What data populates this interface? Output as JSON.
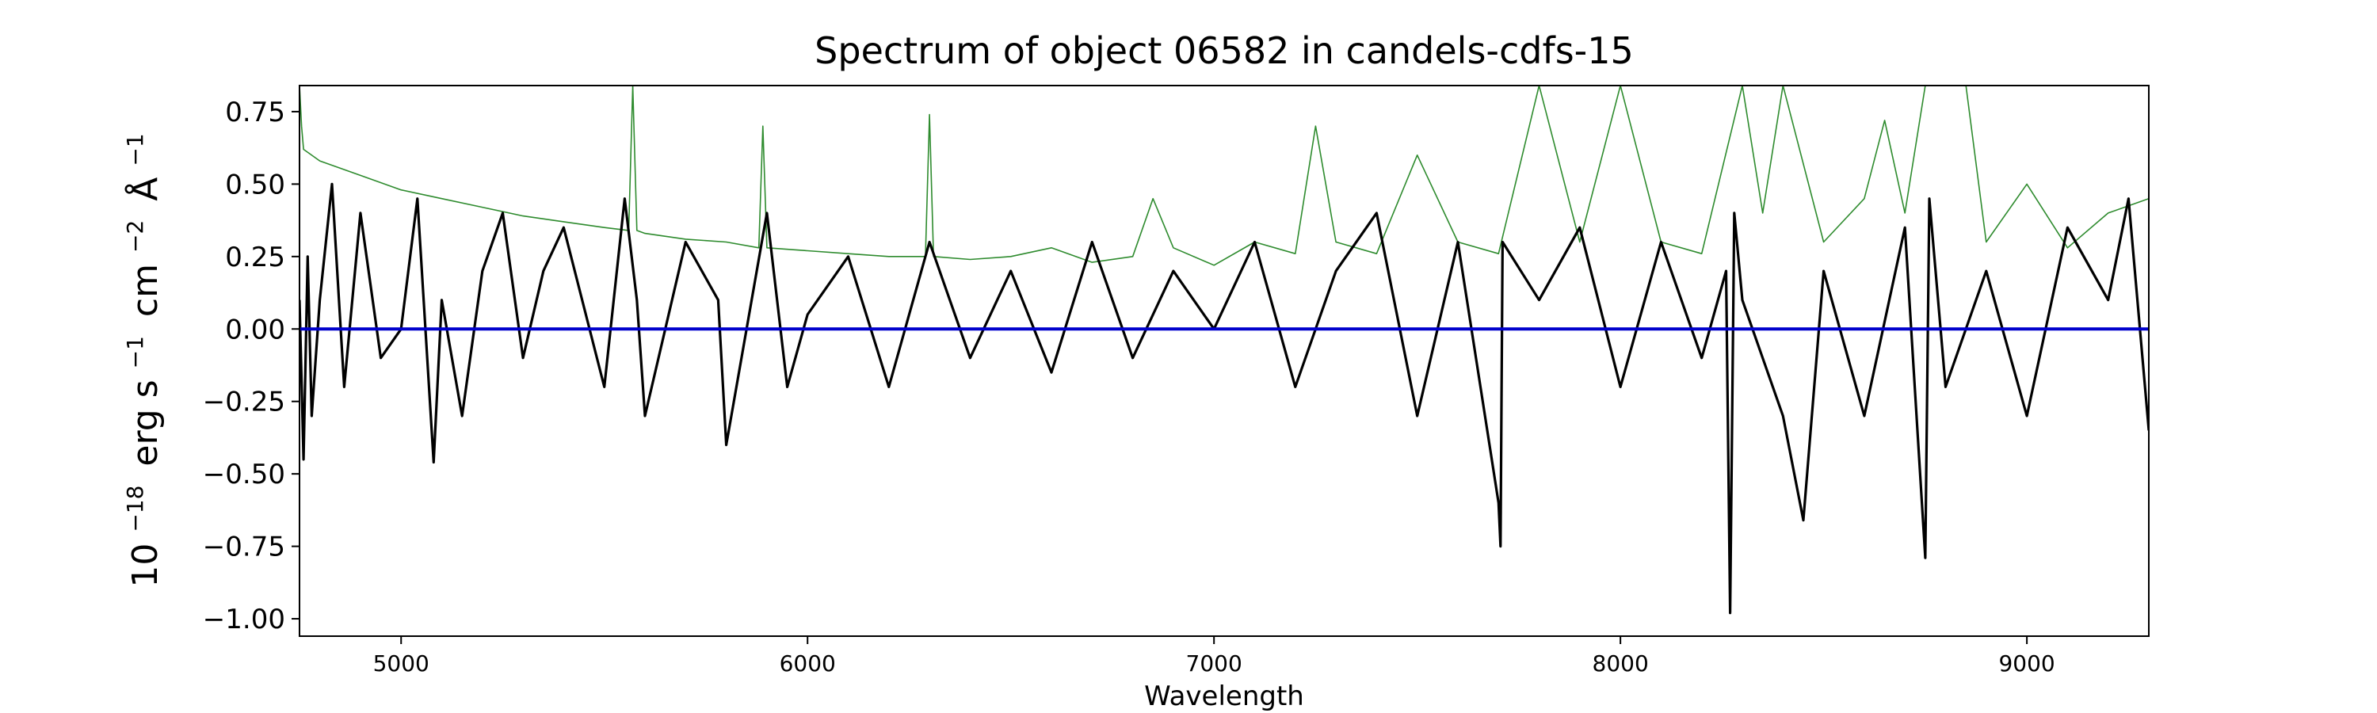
{
  "chart_data": {
    "type": "line",
    "title": "Spectrum of object 06582 in candels-cdfs-15",
    "xlabel": "Wavelength",
    "ylabel": "10−18 erg s−1 cm−2 Å−1",
    "ylabel_parts": {
      "base": "10",
      "exp1": "−18",
      "unit1": "erg s",
      "exp2": "−1",
      "unit2": "cm",
      "exp3": "−2",
      "unit3": "Å",
      "exp4": "−1"
    },
    "xlim": [
      4750,
      9300
    ],
    "ylim": [
      -1.06,
      0.84
    ],
    "x_ticks": [
      5000,
      6000,
      7000,
      8000,
      9000
    ],
    "x_tick_labels": [
      "5000",
      "6000",
      "7000",
      "8000",
      "9000"
    ],
    "y_ticks": [
      -1.0,
      -0.75,
      -0.5,
      -0.25,
      0.0,
      0.25,
      0.5,
      0.75
    ],
    "y_tick_labels": [
      "−1.00",
      "−0.75",
      "−0.50",
      "−0.25",
      "0.00",
      "0.25",
      "0.50",
      "0.75"
    ],
    "grid": false,
    "legend": "none",
    "colors": {
      "flux": "#000000",
      "error": "#2e8b2e",
      "model": "#0000cc"
    },
    "series": [
      {
        "key": "flux",
        "x": [
          4750,
          4760,
          4770,
          4780,
          4800,
          4830,
          4860,
          4900,
          4950,
          5000,
          5040,
          5080,
          5100,
          5150,
          5200,
          5250,
          5300,
          5350,
          5400,
          5500,
          5550,
          5580,
          5600,
          5700,
          5780,
          5800,
          5900,
          5950,
          6000,
          6100,
          6200,
          6300,
          6400,
          6500,
          6600,
          6700,
          6800,
          6900,
          7000,
          7100,
          7200,
          7300,
          7400,
          7500,
          7600,
          7700,
          7705,
          7710,
          7800,
          7900,
          8000,
          8100,
          8200,
          8260,
          8270,
          8280,
          8300,
          8400,
          8450,
          8500,
          8600,
          8700,
          8750,
          8760,
          8800,
          8900,
          9000,
          9100,
          9200,
          9250,
          9300
        ],
        "values": [
          0.1,
          -0.45,
          0.25,
          -0.3,
          0.1,
          0.5,
          -0.2,
          0.4,
          -0.1,
          0.0,
          0.45,
          -0.46,
          0.1,
          -0.3,
          0.2,
          0.4,
          -0.1,
          0.2,
          0.35,
          -0.2,
          0.45,
          0.1,
          -0.3,
          0.3,
          0.1,
          -0.4,
          0.4,
          -0.2,
          0.05,
          0.25,
          -0.2,
          0.3,
          -0.1,
          0.2,
          -0.15,
          0.3,
          -0.1,
          0.2,
          0.0,
          0.3,
          -0.2,
          0.2,
          0.4,
          -0.3,
          0.3,
          -0.6,
          -0.75,
          0.3,
          0.1,
          0.35,
          -0.2,
          0.3,
          -0.1,
          0.2,
          -0.98,
          0.4,
          0.1,
          -0.3,
          -0.66,
          0.2,
          -0.3,
          0.35,
          -0.79,
          0.45,
          -0.2,
          0.2,
          -0.3,
          0.35,
          0.1,
          0.45,
          -0.35
        ]
      },
      {
        "key": "error",
        "x": [
          4750,
          4755,
          4760,
          4800,
          4900,
          5000,
          5100,
          5200,
          5300,
          5400,
          5500,
          5560,
          5570,
          5580,
          5600,
          5700,
          5800,
          5880,
          5890,
          5900,
          6000,
          6100,
          6200,
          6290,
          6300,
          6310,
          6400,
          6500,
          6600,
          6700,
          6800,
          6850,
          6900,
          7000,
          7100,
          7200,
          7250,
          7300,
          7400,
          7500,
          7600,
          7700,
          7800,
          7900,
          8000,
          8100,
          8200,
          8300,
          8350,
          8400,
          8500,
          8600,
          8650,
          8700,
          8750,
          8800,
          8850,
          8900,
          9000,
          9100,
          9200,
          9300
        ],
        "values": [
          0.84,
          0.7,
          0.62,
          0.58,
          0.53,
          0.48,
          0.45,
          0.42,
          0.39,
          0.37,
          0.35,
          0.34,
          0.84,
          0.34,
          0.33,
          0.31,
          0.3,
          0.28,
          0.7,
          0.28,
          0.27,
          0.26,
          0.25,
          0.25,
          0.74,
          0.25,
          0.24,
          0.25,
          0.28,
          0.23,
          0.25,
          0.45,
          0.28,
          0.22,
          0.3,
          0.26,
          0.7,
          0.3,
          0.26,
          0.6,
          0.3,
          0.26,
          0.84,
          0.3,
          0.84,
          0.3,
          0.26,
          0.84,
          0.4,
          0.84,
          0.3,
          0.45,
          0.72,
          0.4,
          0.84,
          0.84,
          0.84,
          0.3,
          0.5,
          0.28,
          0.4,
          0.45
        ]
      },
      {
        "key": "model",
        "x": [
          4750,
          9300
        ],
        "values": [
          0.0,
          0.0
        ]
      }
    ]
  }
}
